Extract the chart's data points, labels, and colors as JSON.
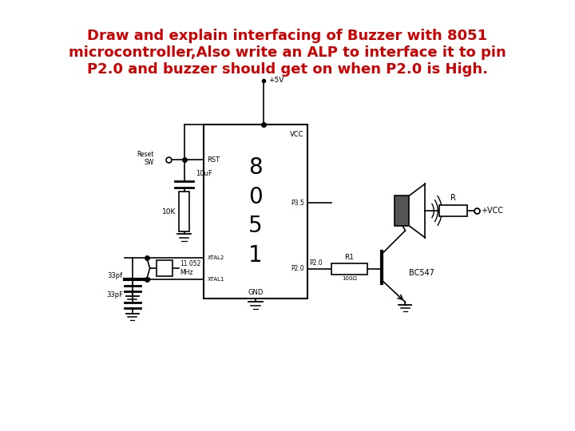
{
  "title_line1": "Draw and explain interfacing of Buzzer with 8051",
  "title_line2": "microcontroller,Also write an ALP to interface it to pin",
  "title_line3": "P2.0 and buzzer should get on when P2.0 is High.",
  "title_color": "#cc0000",
  "title_fontsize": 13,
  "bg_color": "#ffffff",
  "circuit_color": "#000000"
}
